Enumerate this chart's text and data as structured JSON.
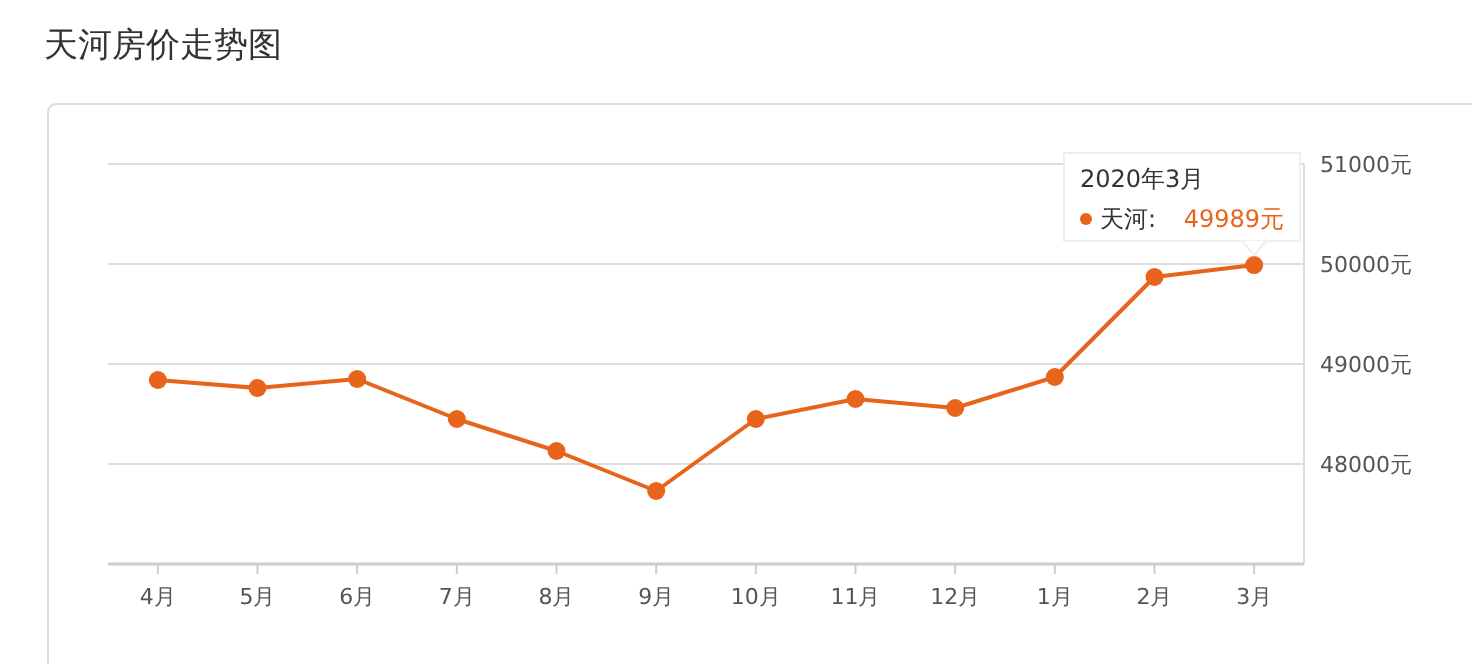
{
  "chart_data": {
    "type": "line",
    "title": "天河房价走势图",
    "categories": [
      "4月",
      "5月",
      "6月",
      "7月",
      "8月",
      "9月",
      "10月",
      "11月",
      "12月",
      "1月",
      "2月",
      "3月"
    ],
    "series": [
      {
        "name": "天河:",
        "color": "#e8641b",
        "values": [
          48840,
          48760,
          48850,
          48450,
          48130,
          47730,
          48450,
          48650,
          48560,
          48870,
          49870,
          49989
        ],
        "value_labels": [
          null,
          null,
          null,
          null,
          null,
          null,
          null,
          null,
          null,
          null,
          null,
          "49989元"
        ]
      }
    ],
    "annotations": [
      "2020年3月"
    ],
    "ylim": [
      47000,
      51000
    ],
    "yticks": [
      {
        "value": 47000,
        "label": null
      },
      {
        "value": 48000,
        "label": "48000元"
      },
      {
        "value": 49000,
        "label": "49000元"
      },
      {
        "value": 50000,
        "label": "50000元"
      },
      {
        "value": 51000,
        "label": "51000元"
      }
    ],
    "grid": "y",
    "marker": "circle",
    "line_style": "solid",
    "legend": "top right"
  }
}
